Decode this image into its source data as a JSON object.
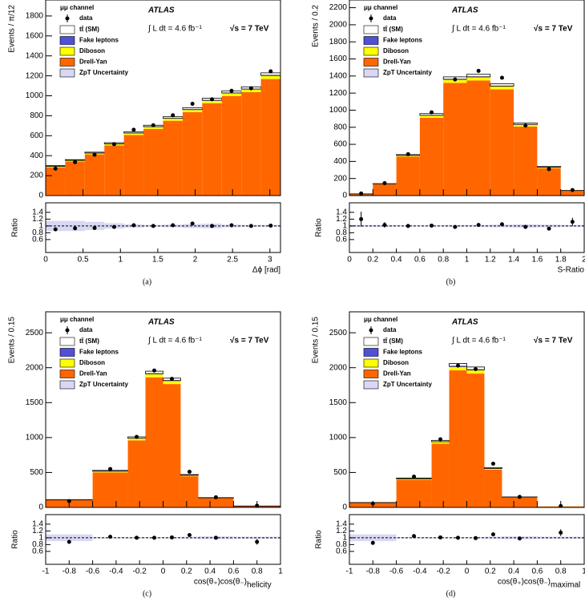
{
  "chart_data": [
    {
      "type": "stacked_histogram",
      "panel_label": "(a)",
      "channel": "μμ channel",
      "experiment": "ATLAS",
      "luminosity": "∫ L dt = 4.6 fb⁻¹",
      "energy": "√s = 7 TeV",
      "ylabel": "Events / π/12",
      "xlabel": "Δϕ [rad]",
      "ratio_ylabel": "Ratio",
      "bins": [
        0,
        0.2618,
        0.5236,
        0.7854,
        1.0472,
        1.309,
        1.5708,
        1.8326,
        2.0944,
        2.3562,
        2.618,
        2.8798,
        3.1416
      ],
      "xlim": [
        0,
        3.1416
      ],
      "xticks": [
        0,
        0.5,
        1,
        1.5,
        2,
        2.5,
        3
      ],
      "ylim": [
        0,
        1960
      ],
      "yticks": [
        0,
        200,
        400,
        600,
        800,
        1000,
        1200,
        1400,
        1600,
        1800
      ],
      "series": [
        {
          "name": "tt̄ (SM)",
          "color": "#ffffff",
          "values": [
            6,
            7,
            9,
            11,
            13,
            14,
            16,
            18,
            20,
            21,
            22,
            25
          ]
        },
        {
          "name": "Fake leptons",
          "color": "#5050d8",
          "values": [
            2,
            2,
            2,
            3,
            3,
            4,
            4,
            4,
            5,
            5,
            5,
            6
          ]
        },
        {
          "name": "Diboson",
          "color": "#ffff00",
          "values": [
            8,
            9,
            11,
            13,
            16,
            18,
            20,
            22,
            24,
            26,
            27,
            31
          ]
        },
        {
          "name": "Drell-Yan",
          "color": "#ff6600",
          "values": [
            284,
            342,
            413,
            503,
            608,
            669,
            750,
            836,
            926,
            998,
            1036,
            1168
          ]
        }
      ],
      "data": {
        "name": "data",
        "color": "#000000",
        "values": [
          270,
          335,
          410,
          515,
          660,
          705,
          805,
          920,
          965,
          1050,
          1075,
          1245
        ]
      },
      "uncertainty_name": "ZpT Uncertainty",
      "uncertainty_color": "#d8d8f4",
      "ratio": {
        "ylim": [
          0.22,
          1.68
        ],
        "yticks": [
          0.6,
          0.8,
          1,
          1.2,
          1.4
        ],
        "reference": 1,
        "values": [
          0.9,
          0.93,
          0.94,
          0.97,
          1.02,
          1.0,
          1.02,
          1.07,
          1.0,
          1.02,
          1.0,
          1.01
        ],
        "errors": [
          0.05,
          0.05,
          0.05,
          0.04,
          0.04,
          0.04,
          0.04,
          0.03,
          0.03,
          0.03,
          0.03,
          0.03
        ],
        "uncertainty": [
          0.15,
          0.15,
          0.12,
          0.08,
          0.05,
          0.03,
          0.04,
          0.06,
          0.07,
          0.04,
          0.03,
          0.03
        ]
      }
    },
    {
      "type": "stacked_histogram",
      "panel_label": "(b)",
      "channel": "μμ channel",
      "experiment": "ATLAS",
      "luminosity": "∫ L dt = 4.6 fb⁻¹",
      "energy": "√s = 7 TeV",
      "ylabel": "Events / 0.2",
      "xlabel": "S-Ratio",
      "ratio_ylabel": "Ratio",
      "bins": [
        0,
        0.2,
        0.4,
        0.6,
        0.8,
        1,
        1.2,
        1.4,
        1.6,
        1.8,
        2
      ],
      "xlim": [
        0,
        2
      ],
      "xticks": [
        0,
        0.2,
        0.4,
        0.6,
        0.8,
        1,
        1.2,
        1.4,
        1.6,
        1.8,
        2
      ],
      "ylim": [
        0,
        2290
      ],
      "yticks": [
        0,
        200,
        400,
        600,
        800,
        1000,
        1200,
        1400,
        1600,
        1800,
        2000,
        2200
      ],
      "series": [
        {
          "name": "tt̄ (SM)",
          "color": "#ffffff",
          "values": [
            1,
            3,
            10,
            20,
            28,
            29,
            27,
            17,
            7,
            1
          ]
        },
        {
          "name": "Fake leptons",
          "color": "#5050d8",
          "values": [
            0,
            1,
            2,
            5,
            7,
            7,
            6,
            4,
            2,
            0
          ]
        },
        {
          "name": "Diboson",
          "color": "#ffff00",
          "values": [
            1,
            4,
            12,
            24,
            35,
            36,
            33,
            21,
            9,
            2
          ]
        },
        {
          "name": "Drell-Yan",
          "color": "#ff6600",
          "values": [
            18,
            132,
            456,
            911,
            1320,
            1348,
            1244,
            808,
            322,
            57
          ]
        }
      ],
      "data": {
        "name": "data",
        "color": "#000000",
        "values": [
          25,
          145,
          485,
          975,
          1360,
          1460,
          1380,
          820,
          310,
          65
        ]
      },
      "uncertainty_name": "ZpT Uncertainty",
      "uncertainty_color": "#d8d8f4",
      "ratio": {
        "ylim": [
          0.22,
          1.68
        ],
        "yticks": [
          0.6,
          0.8,
          1,
          1.2,
          1.4
        ],
        "reference": 1,
        "values": [
          1.2,
          1.03,
          1.0,
          1.01,
          0.97,
          1.03,
          1.05,
          0.97,
          0.92,
          1.12
        ],
        "errors": [
          0.22,
          0.08,
          0.04,
          0.03,
          0.03,
          0.03,
          0.03,
          0.03,
          0.05,
          0.12
        ],
        "uncertainty": [
          0.03,
          0.03,
          0.02,
          0.02,
          0.03,
          0.03,
          0.04,
          0.05,
          0.04,
          0.03
        ]
      }
    },
    {
      "type": "stacked_histogram",
      "panel_label": "(c)",
      "channel": "μμ channel",
      "experiment": "ATLAS",
      "luminosity": "∫ L dt = 4.6 fb⁻¹",
      "energy": "√s = 7 TeV",
      "ylabel": "Events / 0.15",
      "xlabel": "cos(θ₊)cos(θ₋)",
      "xlabel_sub": "helicity",
      "ratio_ylabel": "Ratio",
      "bins": [
        -1,
        -0.6,
        -0.3,
        -0.15,
        0,
        0.15,
        0.3,
        0.6,
        1
      ],
      "xlim": [
        -1,
        1
      ],
      "xticks": [
        -1,
        -0.8,
        -0.6,
        -0.4,
        -0.2,
        0,
        0.2,
        0.4,
        0.6,
        0.8,
        1
      ],
      "ylim": [
        0,
        2800
      ],
      "yticks": [
        0,
        500,
        1000,
        1500,
        2000,
        2500
      ],
      "series": [
        {
          "name": "tt̄ (SM)",
          "color": "#ffffff",
          "values": [
            3,
            12,
            20,
            35,
            33,
            10,
            3,
            1
          ]
        },
        {
          "name": "Fake leptons",
          "color": "#5050d8",
          "values": [
            1,
            3,
            5,
            9,
            9,
            2,
            1,
            0
          ]
        },
        {
          "name": "Diboson",
          "color": "#ffff00",
          "values": [
            3,
            14,
            25,
            44,
            42,
            12,
            4,
            1
          ]
        },
        {
          "name": "Drell-Yan",
          "color": "#ff6600",
          "values": [
            103,
            501,
            960,
            1862,
            1766,
            446,
            132,
            18
          ]
        }
      ],
      "data": {
        "name": "data",
        "color": "#000000",
        "values": [
          90,
          550,
          1010,
          1960,
          1840,
          510,
          145,
          25
        ]
      },
      "uncertainty_name": "ZpT Uncertainty",
      "uncertainty_color": "#d8d8f4",
      "ratio": {
        "ylim": [
          0.22,
          1.68
        ],
        "yticks": [
          0.6,
          0.8,
          1,
          1.2,
          1.4
        ],
        "reference": 1,
        "values": [
          0.88,
          1.03,
          1.0,
          1.0,
          1.01,
          1.08,
          1.0,
          0.88
        ],
        "errors": [
          0.06,
          0.03,
          0.02,
          0.02,
          0.02,
          0.03,
          0.05,
          0.08
        ],
        "uncertainty": [
          0.1,
          0.02,
          0.02,
          0.02,
          0.02,
          0.03,
          0.04,
          0.03
        ]
      }
    },
    {
      "type": "stacked_histogram",
      "panel_label": "(d)",
      "channel": "μμ channel",
      "experiment": "ATLAS",
      "luminosity": "∫ L dt = 4.6 fb⁻¹",
      "energy": "√s = 7 TeV",
      "ylabel": "Events / 0.15",
      "xlabel": "cos(θ₊)cos(θ₋)",
      "xlabel_sub": "maximal",
      "ratio_ylabel": "Ratio",
      "bins": [
        -1,
        -0.6,
        -0.3,
        -0.15,
        0,
        0.15,
        0.3,
        0.6,
        1
      ],
      "xlim": [
        -1,
        1
      ],
      "xticks": [
        -1,
        -0.8,
        -0.6,
        -0.4,
        -0.2,
        0,
        0.2,
        0.4,
        0.6,
        0.8,
        1
      ],
      "ylim": [
        0,
        2800
      ],
      "yticks": [
        0,
        500,
        1000,
        1500,
        2000,
        2500
      ],
      "series": [
        {
          "name": "tt̄ (SM)",
          "color": "#ffffff",
          "values": [
            2,
            9,
            19,
            40,
            38,
            12,
            3,
            0
          ]
        },
        {
          "name": "Fake leptons",
          "color": "#5050d8",
          "values": [
            0,
            2,
            5,
            10,
            10,
            3,
            1,
            0
          ]
        },
        {
          "name": "Diboson",
          "color": "#ffff00",
          "values": [
            2,
            11,
            24,
            48,
            46,
            14,
            4,
            1
          ]
        },
        {
          "name": "Drell-Yan",
          "color": "#ff6600",
          "values": [
            66,
            398,
            912,
            1962,
            1916,
            541,
            142,
            14
          ]
        }
      ],
      "data": {
        "name": "data",
        "color": "#000000",
        "values": [
          55,
          440,
          975,
          2030,
          1980,
          625,
          150,
          20
        ]
      },
      "uncertainty_name": "ZpT Uncertainty",
      "uncertainty_color": "#d8d8f4",
      "ratio": {
        "ylim": [
          0.22,
          1.68
        ],
        "yticks": [
          0.6,
          0.8,
          1,
          1.2,
          1.4
        ],
        "reference": 1,
        "values": [
          0.85,
          1.05,
          1.01,
          1.0,
          0.99,
          1.1,
          0.98,
          1.15
        ],
        "errors": [
          0.06,
          0.03,
          0.02,
          0.02,
          0.02,
          0.03,
          0.05,
          0.1
        ],
        "uncertainty": [
          0.1,
          0.02,
          0.02,
          0.02,
          0.02,
          0.03,
          0.04,
          0.03
        ]
      }
    }
  ]
}
